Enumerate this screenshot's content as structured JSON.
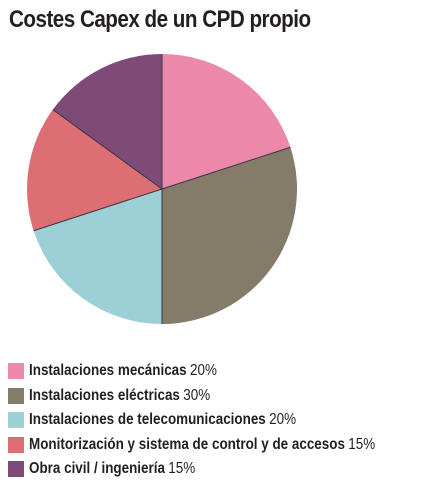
{
  "chart_data": {
    "type": "pie",
    "title": "Costes Capex de un CPD propio",
    "unit": "%",
    "slices": [
      {
        "label": "Instalaciones mecánicas",
        "value": 20,
        "value_text": "20%",
        "color": "#ec88aa"
      },
      {
        "label": "Instalaciones eléctricas",
        "value": 30,
        "value_text": "30%",
        "color": "#847b68"
      },
      {
        "label": "Instalaciones de telecomunicaciones",
        "value": 20,
        "value_text": "20%",
        "color": "#9dcfd6"
      },
      {
        "label": "Monitorización y sistema de control y de accesos",
        "value": 15,
        "value_text": "15%",
        "color": "#dc6e74"
      },
      {
        "label": "Obra civil / ingeniería",
        "value": 15,
        "value_text": "15%",
        "color": "#7e4a78"
      }
    ],
    "start": "12 o'clock",
    "direction": "clockwise",
    "legend_position": "bottom"
  }
}
